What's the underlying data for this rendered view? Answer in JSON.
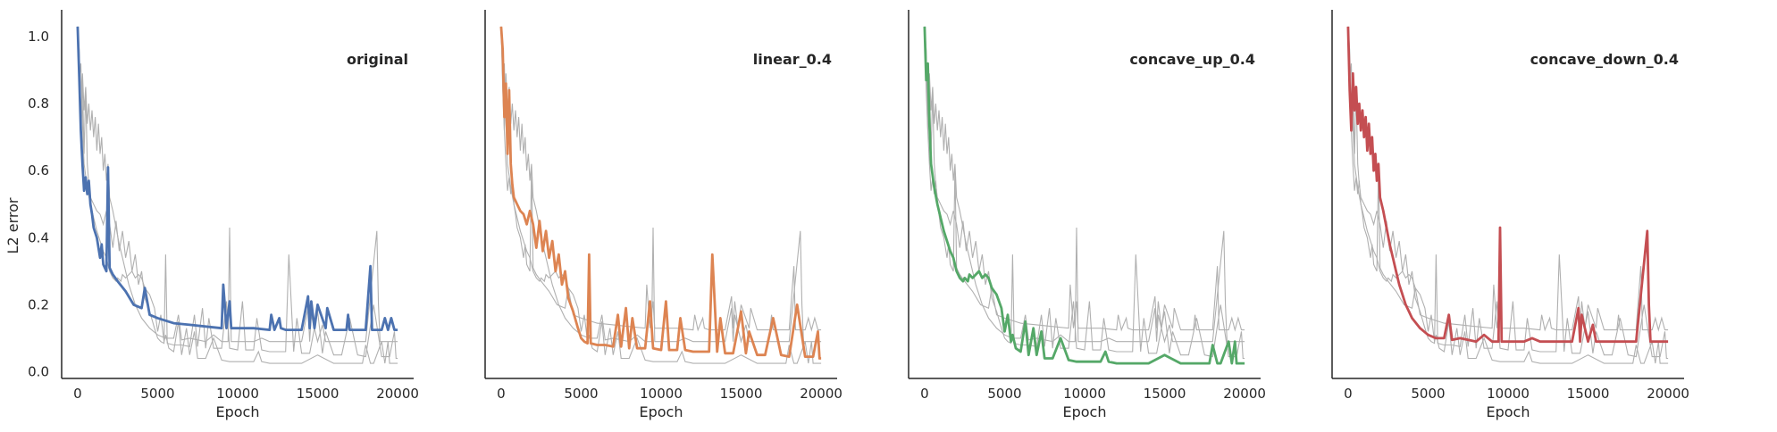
{
  "chart_data": {
    "type": "line",
    "ylabel": "L2 error",
    "xlabel": "Epoch",
    "xlim": [
      -1000,
      21000
    ],
    "ylim": [
      -0.02,
      1.08
    ],
    "xticks": [
      "0",
      "5000",
      "10000",
      "15000",
      "20000"
    ],
    "yticks": [
      "0.0",
      "0.2",
      "0.4",
      "0.6",
      "0.8",
      "1.0"
    ],
    "grid": false,
    "background_color": "#b0b0b0",
    "panels": [
      {
        "title": "original",
        "color": "#4c72b0",
        "x": [
          0,
          100,
          200,
          300,
          400,
          500,
          600,
          700,
          800,
          900,
          1000,
          1200,
          1400,
          1500,
          1600,
          1800,
          1900,
          2000,
          2100,
          2200,
          2500,
          3000,
          3500,
          4000,
          4200,
          4500,
          5000,
          6000,
          7000,
          8000,
          9000,
          9100,
          9300,
          9500,
          9600,
          10000,
          11000,
          12000,
          12100,
          12300,
          12600,
          12700,
          13000,
          14000,
          14400,
          14500,
          14600,
          14800,
          15000,
          15500,
          15600,
          16000,
          16800,
          16900,
          17000,
          18000,
          18300,
          18400,
          18600,
          19000,
          19200,
          19400,
          19600,
          19800,
          20000
        ],
        "y": [
          1.03,
          0.88,
          0.72,
          0.62,
          0.54,
          0.58,
          0.53,
          0.57,
          0.5,
          0.47,
          0.43,
          0.4,
          0.34,
          0.38,
          0.32,
          0.3,
          0.61,
          0.31,
          0.3,
          0.29,
          0.27,
          0.24,
          0.2,
          0.19,
          0.25,
          0.17,
          0.16,
          0.145,
          0.14,
          0.135,
          0.13,
          0.26,
          0.13,
          0.21,
          0.13,
          0.13,
          0.13,
          0.125,
          0.17,
          0.125,
          0.16,
          0.13,
          0.125,
          0.125,
          0.225,
          0.13,
          0.21,
          0.13,
          0.2,
          0.13,
          0.19,
          0.125,
          0.125,
          0.17,
          0.125,
          0.125,
          0.315,
          0.125,
          0.125,
          0.125,
          0.16,
          0.125,
          0.16,
          0.125,
          0.125
        ]
      },
      {
        "title": "linear_0.4",
        "color": "#dd8452",
        "x": [
          0,
          100,
          200,
          300,
          400,
          500,
          600,
          700,
          800,
          900,
          1000,
          1200,
          1400,
          1600,
          1800,
          2000,
          2200,
          2400,
          2600,
          2800,
          3000,
          3200,
          3400,
          3600,
          3800,
          4000,
          4200,
          4500,
          4800,
          5000,
          5200,
          5400,
          5500,
          5600,
          6000,
          6500,
          7000,
          7300,
          7500,
          7800,
          8000,
          8200,
          8500,
          9000,
          9300,
          9500,
          10000,
          10300,
          10500,
          11000,
          11200,
          11500,
          12000,
          12500,
          13000,
          13200,
          13500,
          13700,
          14000,
          14500,
          15000,
          15300,
          15500,
          16000,
          16500,
          17000,
          17500,
          18000,
          18500,
          19000,
          19500,
          19800,
          19900,
          20000
        ],
        "y": [
          1.03,
          0.96,
          0.76,
          0.86,
          0.65,
          0.84,
          0.62,
          0.56,
          0.52,
          0.51,
          0.5,
          0.48,
          0.47,
          0.44,
          0.48,
          0.44,
          0.37,
          0.45,
          0.36,
          0.42,
          0.34,
          0.39,
          0.3,
          0.35,
          0.26,
          0.3,
          0.22,
          0.18,
          0.13,
          0.1,
          0.09,
          0.085,
          0.35,
          0.085,
          0.08,
          0.08,
          0.075,
          0.17,
          0.075,
          0.19,
          0.07,
          0.16,
          0.07,
          0.07,
          0.21,
          0.07,
          0.065,
          0.21,
          0.065,
          0.065,
          0.16,
          0.065,
          0.06,
          0.06,
          0.06,
          0.35,
          0.06,
          0.16,
          0.055,
          0.055,
          0.18,
          0.055,
          0.12,
          0.05,
          0.05,
          0.16,
          0.05,
          0.045,
          0.2,
          0.045,
          0.045,
          0.12,
          0.04,
          0.04
        ]
      },
      {
        "title": "concave_up_0.4",
        "color": "#55a868",
        "x": [
          0,
          100,
          200,
          300,
          400,
          600,
          800,
          1000,
          1200,
          1400,
          1600,
          1800,
          2000,
          2200,
          2400,
          2500,
          2700,
          2800,
          3000,
          3200,
          3400,
          3600,
          3800,
          4000,
          4200,
          4500,
          4800,
          5000,
          5200,
          5400,
          5500,
          5700,
          6000,
          6300,
          6500,
          6800,
          7000,
          7300,
          7500,
          8000,
          8500,
          9000,
          9500,
          10000,
          11000,
          11300,
          11500,
          12000,
          13000,
          14000,
          15000,
          16000,
          17000,
          17800,
          18000,
          18300,
          18500,
          19000,
          19200,
          19400,
          19500,
          20000
        ],
        "y": [
          1.03,
          0.87,
          0.92,
          0.74,
          0.62,
          0.55,
          0.5,
          0.46,
          0.42,
          0.39,
          0.36,
          0.34,
          0.3,
          0.28,
          0.27,
          0.28,
          0.27,
          0.29,
          0.28,
          0.29,
          0.3,
          0.28,
          0.29,
          0.28,
          0.25,
          0.23,
          0.19,
          0.12,
          0.17,
          0.09,
          0.11,
          0.07,
          0.06,
          0.15,
          0.05,
          0.13,
          0.05,
          0.12,
          0.04,
          0.04,
          0.1,
          0.035,
          0.03,
          0.03,
          0.03,
          0.06,
          0.03,
          0.025,
          0.025,
          0.025,
          0.05,
          0.025,
          0.025,
          0.025,
          0.08,
          0.025,
          0.025,
          0.09,
          0.025,
          0.09,
          0.025,
          0.025
        ]
      },
      {
        "title": "concave_down_0.4",
        "color": "#c44e52",
        "x": [
          0,
          100,
          200,
          300,
          400,
          500,
          600,
          700,
          800,
          900,
          1000,
          1100,
          1200,
          1300,
          1400,
          1500,
          1600,
          1700,
          1800,
          1900,
          2000,
          2200,
          2400,
          2600,
          2800,
          3000,
          3200,
          3400,
          3600,
          3800,
          4000,
          4500,
          5000,
          5500,
          6000,
          6300,
          6500,
          7000,
          7500,
          8000,
          8500,
          9000,
          9400,
          9500,
          9600,
          10000,
          11000,
          11500,
          12000,
          13000,
          14000,
          14400,
          14500,
          14600,
          15000,
          15300,
          15500,
          16000,
          17000,
          18000,
          18700,
          18800,
          18900,
          19000,
          19500,
          20000
        ],
        "y": [
          1.03,
          0.84,
          0.72,
          0.89,
          0.78,
          0.85,
          0.74,
          0.8,
          0.72,
          0.78,
          0.7,
          0.76,
          0.66,
          0.74,
          0.65,
          0.7,
          0.6,
          0.65,
          0.57,
          0.62,
          0.52,
          0.48,
          0.43,
          0.38,
          0.34,
          0.3,
          0.26,
          0.23,
          0.2,
          0.18,
          0.16,
          0.13,
          0.11,
          0.1,
          0.1,
          0.17,
          0.095,
          0.1,
          0.095,
          0.09,
          0.11,
          0.09,
          0.09,
          0.43,
          0.09,
          0.09,
          0.09,
          0.1,
          0.09,
          0.09,
          0.09,
          0.19,
          0.09,
          0.17,
          0.09,
          0.14,
          0.09,
          0.09,
          0.09,
          0.09,
          0.42,
          0.2,
          0.09,
          0.09,
          0.09,
          0.09
        ]
      }
    ]
  }
}
